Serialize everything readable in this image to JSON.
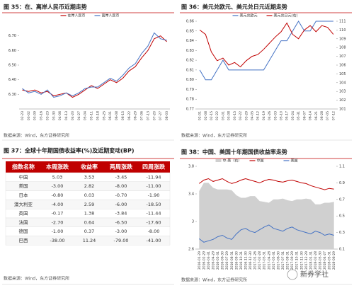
{
  "chart_data": [
    {
      "type": "line",
      "title": "图 35：在、离岸人民币近期走势",
      "source": "数据来源：Wind，东方证券研究所",
      "categories": [
        "02-23",
        "03-02",
        "03-09",
        "03-16",
        "03-23",
        "03-30",
        "04-06",
        "04-13",
        "04-20",
        "04-27",
        "05-04",
        "05-11",
        "05-18",
        "05-25",
        "06-01",
        "06-08",
        "06-15",
        "06-22",
        "06-29",
        "07-06",
        "07-13",
        "07-20",
        "07-27",
        "08-03"
      ],
      "series": [
        {
          "name": "在岸人民币",
          "color": "#c00000",
          "values": [
            6.33,
            6.32,
            6.33,
            6.31,
            6.32,
            6.29,
            6.3,
            6.31,
            6.28,
            6.3,
            6.33,
            6.36,
            6.34,
            6.37,
            6.4,
            6.38,
            6.41,
            6.46,
            6.49,
            6.55,
            6.6,
            6.68,
            6.7,
            6.66
          ]
        },
        {
          "name": "离岸人民币",
          "color": "#4472c4",
          "values": [
            6.34,
            6.31,
            6.32,
            6.3,
            6.33,
            6.28,
            6.29,
            6.31,
            6.29,
            6.31,
            6.34,
            6.35,
            6.35,
            6.38,
            6.41,
            6.39,
            6.43,
            6.48,
            6.51,
            6.58,
            6.63,
            6.72,
            6.68,
            6.67
          ]
        }
      ],
      "ylim": [
        6.2,
        6.8
      ],
      "yticks": [
        {
          "value": 6.3,
          "label": "6.30"
        },
        {
          "value": 6.4,
          "label": "6.40"
        },
        {
          "value": 6.5,
          "label": "6.50"
        },
        {
          "value": 6.6,
          "label": "6.60"
        },
        {
          "value": 6.7,
          "label": "6.70"
        }
      ]
    },
    {
      "type": "line",
      "title": "图 36：美元兑欧元、美元兑日元近期走势",
      "source": "数据来源：Wind，东方证券研究所",
      "categories": [
        "02-01",
        "02-08",
        "02-15",
        "02-22",
        "03-01",
        "03-08",
        "03-15",
        "03-22",
        "03-29",
        "04-05",
        "04-12",
        "04-19",
        "04-26",
        "05-03",
        "05-10",
        "05-17",
        "05-24",
        "05-31",
        "06-07",
        "06-14",
        "06-21",
        "06-28",
        "07-05",
        "07-12"
      ],
      "series": [
        {
          "name": "美元兑欧元",
          "color": "#4472c4",
          "values": [
            0.81,
            0.8,
            0.8,
            0.81,
            0.82,
            0.81,
            0.81,
            0.81,
            0.81,
            0.81,
            0.81,
            0.81,
            0.82,
            0.83,
            0.84,
            0.84,
            0.85,
            0.86,
            0.85,
            0.85,
            0.86,
            0.86,
            0.86,
            0.86
          ]
        },
        {
          "name": "美元兑日元(右)",
          "color": "#c00000",
          "axis": "y2",
          "values": [
            110.0,
            109.5,
            107.5,
            106.5,
            106.8,
            106.0,
            106.3,
            105.8,
            106.5,
            107.0,
            107.2,
            107.8,
            108.5,
            109.2,
            109.8,
            110.8,
            109.5,
            109.0,
            110.0,
            110.5,
            109.8,
            110.5,
            110.3,
            109.5
          ]
        }
      ],
      "ylim": [
        0.77,
        0.86
      ],
      "yticks": [
        0.77,
        0.78,
        0.79,
        {
          "value": 0.8,
          "label": "0.80"
        },
        0.81,
        0.82,
        0.83,
        0.84,
        0.85,
        0.86
      ],
      "y2lim": [
        101,
        111
      ],
      "y2ticks": [
        101,
        102,
        103,
        104,
        105,
        106,
        107,
        108,
        109,
        110,
        111
      ]
    },
    {
      "type": "line",
      "title": "图 38：中国、美国十年期国债收益率走势",
      "source": "数据来源：Wind，东方证券研究所",
      "categories": [
        "2016-01-29",
        "2016-02-29",
        "2016-03-31",
        "2016-04-29",
        "2016-05-31",
        "2016-06-30",
        "2016-07-29",
        "2016-08-31",
        "2016-09-30",
        "2016-10-31",
        "2016-11-30",
        "2016-12-30",
        "2017-01-26",
        "2017-02-28",
        "2017-03-31",
        "2017-04-28",
        "2017-05-31",
        "2017-06-30",
        "2017-07-31",
        "2017-08-31",
        "2017-09-29",
        "2017-10-31",
        "2017-11-30",
        "2017-12-29",
        "2018-01-31",
        "2018-02-28",
        "2018-03-30",
        "2018-04-27",
        "2018-05-31",
        "2018-06-29"
      ],
      "series": [
        {
          "name": "中-美（右）",
          "color": "#d0d0d0",
          "type": "area",
          "axis": "y2",
          "values": [
            0.8,
            0.9,
            0.9,
            0.84,
            0.82,
            0.82,
            0.82,
            0.81,
            0.75,
            0.72,
            0.72,
            0.74,
            0.74,
            0.68,
            0.67,
            0.66,
            0.7,
            0.7,
            0.71,
            0.69,
            0.68,
            0.7,
            0.7,
            0.71,
            0.7,
            0.64,
            0.64,
            0.66,
            0.66,
            0.67
          ]
        },
        {
          "name": "中国",
          "color": "#c00000",
          "values": [
            3.55,
            3.6,
            3.62,
            3.58,
            3.6,
            3.62,
            3.58,
            3.55,
            3.57,
            3.6,
            3.62,
            3.6,
            3.58,
            3.56,
            3.59,
            3.61,
            3.6,
            3.58,
            3.57,
            3.59,
            3.6,
            3.58,
            3.56,
            3.55,
            3.52,
            3.5,
            3.48,
            3.46,
            3.48,
            3.47
          ]
        },
        {
          "name": "美国",
          "color": "#4472c4",
          "values": [
            2.75,
            2.7,
            2.72,
            2.74,
            2.78,
            2.8,
            2.76,
            2.74,
            2.82,
            2.88,
            2.9,
            2.86,
            2.84,
            2.88,
            2.92,
            2.95,
            2.9,
            2.88,
            2.86,
            2.9,
            2.92,
            2.88,
            2.86,
            2.84,
            2.82,
            2.86,
            2.84,
            2.8,
            2.82,
            2.8
          ]
        }
      ],
      "ylim": [
        2.6,
        3.8
      ],
      "yticks": [
        2.6,
        3.0,
        3.4,
        3.8
      ],
      "y2lim": [
        0.1,
        1.1
      ],
      "y2ticks": [
        0.1,
        0.3,
        0.5,
        0.7,
        0.9,
        1.1
      ]
    }
  ],
  "table": {
    "title": "图 37：全球十年期国债收益率(%)及近期变动(BP)",
    "source": "数据来源：Wind，东方证券研究所",
    "headers": [
      "指数名称",
      "本周涨跌",
      "收益率",
      "两周涨跌",
      "四周涨跌"
    ],
    "rows": [
      [
        "中国",
        "5.03",
        "3.53",
        "-3.45",
        "-11.94"
      ],
      [
        "美国",
        "-3.00",
        "2.82",
        "-8.00",
        "-11.00"
      ],
      [
        "日本",
        "-0.80",
        "0.03",
        "-0.70",
        "-1.90"
      ],
      [
        "澳大利亚",
        "-4.00",
        "2.59",
        "-6.00",
        "-18.50"
      ],
      [
        "英国",
        "-0.17",
        "1.38",
        "-3.84",
        "-11.44"
      ],
      [
        "法国",
        "-2.70",
        "0.64",
        "-6.50",
        "-17.60"
      ],
      [
        "德国",
        "-1.00",
        "0.37",
        "-3.00",
        "-8.00"
      ],
      [
        "巴西",
        "-38.00",
        "11.24",
        "-79.00",
        "-41.00"
      ]
    ]
  },
  "watermark": "新券学社"
}
